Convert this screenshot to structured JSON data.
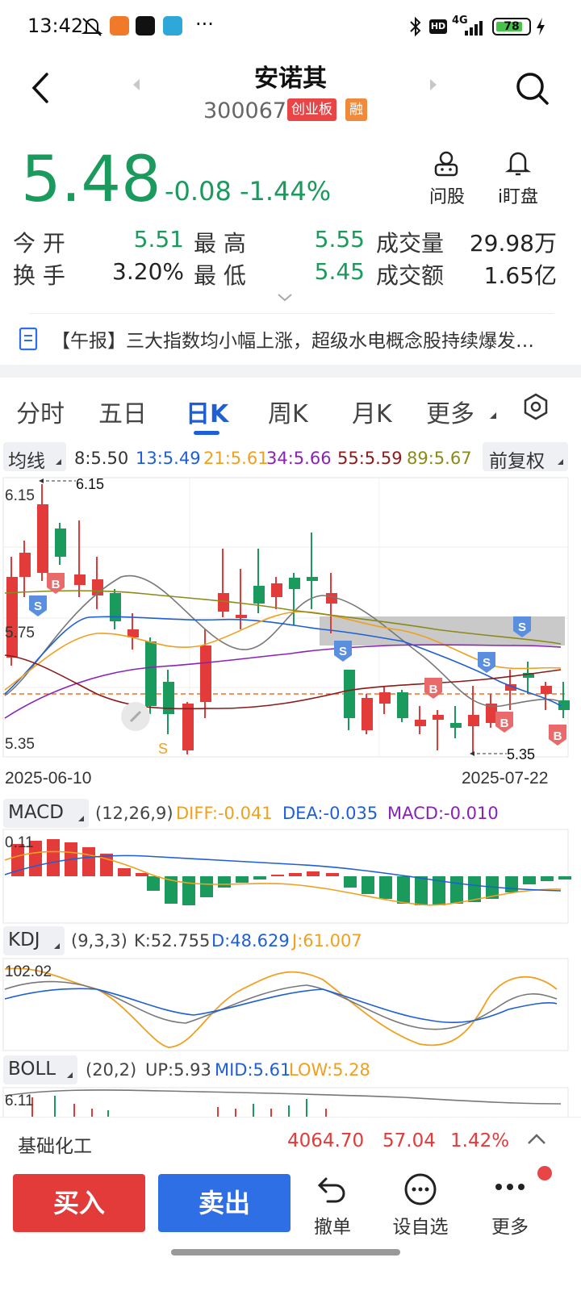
{
  "status_bar": {
    "time": "13:42",
    "network": "4G",
    "battery": "78"
  },
  "header": {
    "name": "安诺其",
    "code": "300067",
    "badge_board": "创业板",
    "badge_margin": "融",
    "ask_label": "问股",
    "watch_label": "i盯盘"
  },
  "quote": {
    "price": "5.48",
    "change": "-0.08",
    "change_pct": "-1.44%",
    "open_label": "今 开",
    "open": "5.51",
    "high_label": "最 高",
    "high": "5.55",
    "volume_label": "成交量",
    "volume": "29.98万",
    "turnover_label": "换 手",
    "turnover": "3.20%",
    "low_label": "最 低",
    "low": "5.45",
    "amount_label": "成交额",
    "amount": "1.65亿"
  },
  "news": {
    "text": "【午报】三大指数均小幅上涨，超级水电概念股持续爆发…"
  },
  "tabs": [
    "分时",
    "五日",
    "日K",
    "周K",
    "月K",
    "更多"
  ],
  "ma": {
    "label": "均线",
    "items": [
      "8:5.50",
      "13:5.49",
      "21:5.61",
      "34:5.66",
      "55:5.59",
      "89:5.67"
    ],
    "colors": [
      "#333333",
      "#1f5fd6",
      "#f0a020",
      "#8a22b8",
      "#8b1a1a",
      "#8a8a1a"
    ],
    "adjust": "前复权"
  },
  "chart_data": {
    "type": "candlestick",
    "price_axis": {
      "top": "6.15",
      "mid": "5.75",
      "bottom": "5.35"
    },
    "max_label": "6.15",
    "min_label": "5.35",
    "date_start": "2025-06-10",
    "date_end": "2025-07-22",
    "current_price": 5.48
  },
  "macd": {
    "label": "MACD",
    "params": "(12,26,9)",
    "diff": "DIFF:-0.041",
    "dea": "DEA:-0.035",
    "macd": "MACD:-0.010",
    "axis_top": "0.11"
  },
  "kdj": {
    "label": "KDJ",
    "params": "(9,3,3)",
    "k": "K:52.755",
    "d": "D:48.629",
    "j": "J:61.007",
    "axis_top": "102.02"
  },
  "boll": {
    "label": "BOLL",
    "params": "(20,2)",
    "up": "UP:5.93",
    "mid": "MID:5.61",
    "low": "LOW:5.28",
    "axis_top": "6.11"
  },
  "sector": {
    "name": "基础化工",
    "value": "4064.70",
    "change": "57.04",
    "pct": "1.42%"
  },
  "actions": {
    "buy": "买入",
    "sell": "卖出",
    "cancel": "撤单",
    "watchlist": "设自选",
    "more": "更多"
  }
}
